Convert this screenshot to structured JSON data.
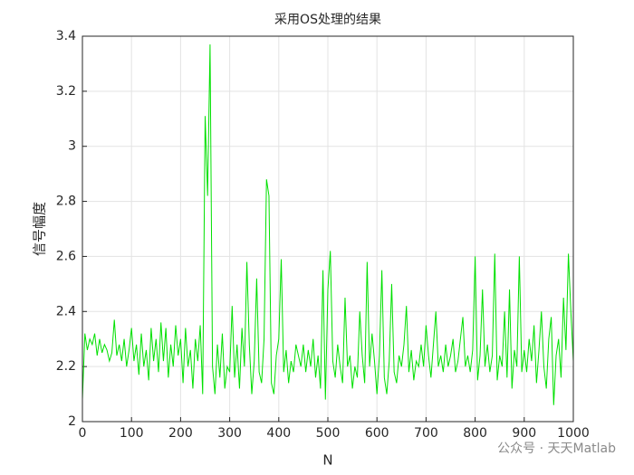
{
  "chart_data": {
    "type": "line",
    "title": "采用OS处理的结果",
    "xlabel": "N",
    "ylabel": "信号幅度",
    "watermark": "公众号 · 天天Matlab",
    "xlim": [
      0,
      1000
    ],
    "xticks": [
      0,
      100,
      200,
      300,
      400,
      500,
      600,
      700,
      800,
      900,
      1000
    ],
    "ylim": [
      2,
      3.4
    ],
    "yticks": [
      2,
      2.2,
      2.4,
      2.6,
      2.8,
      3,
      3.2,
      3.4
    ],
    "grid": true,
    "series": [
      {
        "color": "#00e000",
        "x": [
          0,
          5,
          10,
          15,
          20,
          25,
          30,
          35,
          40,
          45,
          50,
          55,
          60,
          65,
          70,
          75,
          80,
          85,
          90,
          95,
          100,
          105,
          110,
          115,
          120,
          125,
          130,
          135,
          140,
          145,
          150,
          155,
          160,
          165,
          170,
          175,
          180,
          185,
          190,
          195,
          200,
          205,
          210,
          215,
          220,
          225,
          230,
          235,
          240,
          245,
          250,
          255,
          260,
          265,
          270,
          275,
          280,
          285,
          290,
          295,
          300,
          305,
          310,
          315,
          320,
          325,
          330,
          335,
          340,
          345,
          350,
          355,
          360,
          365,
          370,
          375,
          380,
          385,
          390,
          395,
          400,
          405,
          410,
          415,
          420,
          425,
          430,
          435,
          440,
          445,
          450,
          455,
          460,
          465,
          470,
          475,
          480,
          485,
          490,
          495,
          500,
          505,
          510,
          515,
          520,
          525,
          530,
          535,
          540,
          545,
          550,
          555,
          560,
          565,
          570,
          575,
          580,
          585,
          590,
          595,
          600,
          605,
          610,
          615,
          620,
          625,
          630,
          635,
          640,
          645,
          650,
          655,
          660,
          665,
          670,
          675,
          680,
          685,
          690,
          695,
          700,
          705,
          710,
          715,
          720,
          725,
          730,
          735,
          740,
          745,
          750,
          755,
          760,
          765,
          770,
          775,
          780,
          785,
          790,
          795,
          800,
          805,
          810,
          815,
          820,
          825,
          830,
          835,
          840,
          845,
          850,
          855,
          860,
          865,
          870,
          875,
          880,
          885,
          890,
          895,
          900,
          905,
          910,
          915,
          920,
          925,
          930,
          935,
          940,
          945,
          950,
          955,
          960,
          965,
          970,
          975,
          980,
          985,
          990,
          995,
          1000
        ],
        "values": [
          2.08,
          2.32,
          2.26,
          2.3,
          2.28,
          2.32,
          2.24,
          2.3,
          2.25,
          2.28,
          2.26,
          2.22,
          2.25,
          2.37,
          2.24,
          2.28,
          2.22,
          2.3,
          2.2,
          2.26,
          2.34,
          2.22,
          2.28,
          2.17,
          2.32,
          2.2,
          2.26,
          2.15,
          2.34,
          2.22,
          2.3,
          2.18,
          2.36,
          2.22,
          2.34,
          2.16,
          2.28,
          2.2,
          2.35,
          2.24,
          2.3,
          2.14,
          2.34,
          2.2,
          2.26,
          2.12,
          2.3,
          2.22,
          2.35,
          2.1,
          3.11,
          2.82,
          3.37,
          2.2,
          2.1,
          2.28,
          2.16,
          2.32,
          2.12,
          2.2,
          2.18,
          2.42,
          2.16,
          2.28,
          2.12,
          2.34,
          2.2,
          2.58,
          2.28,
          2.1,
          2.22,
          2.52,
          2.18,
          2.14,
          2.3,
          2.88,
          2.82,
          2.14,
          2.1,
          2.24,
          2.3,
          2.59,
          2.18,
          2.26,
          2.14,
          2.22,
          2.18,
          2.28,
          2.24,
          2.2,
          2.28,
          2.18,
          2.26,
          2.2,
          2.3,
          2.16,
          2.24,
          2.12,
          2.55,
          2.08,
          2.48,
          2.62,
          2.22,
          2.16,
          2.28,
          2.2,
          2.14,
          2.45,
          2.2,
          2.24,
          2.12,
          2.2,
          2.16,
          2.4,
          2.24,
          2.14,
          2.58,
          2.2,
          2.32,
          2.22,
          2.1,
          2.24,
          2.55,
          2.16,
          2.1,
          2.22,
          2.5,
          2.18,
          2.14,
          2.24,
          2.2,
          2.28,
          2.42,
          2.18,
          2.26,
          2.15,
          2.22,
          2.2,
          2.28,
          2.2,
          2.35,
          2.24,
          2.16,
          2.28,
          2.4,
          2.2,
          2.24,
          2.18,
          2.28,
          2.2,
          2.24,
          2.3,
          2.18,
          2.22,
          2.3,
          2.38,
          2.2,
          2.24,
          2.18,
          2.26,
          2.6,
          2.15,
          2.24,
          2.48,
          2.2,
          2.28,
          2.18,
          2.24,
          2.61,
          2.15,
          2.24,
          2.2,
          2.4,
          2.16,
          2.48,
          2.12,
          2.26,
          2.2,
          2.6,
          2.18,
          2.26,
          2.18,
          2.3,
          2.22,
          2.35,
          2.14,
          2.26,
          2.4,
          2.2,
          2.12,
          2.3,
          2.38,
          2.06,
          2.24,
          2.3,
          2.16,
          2.45,
          2.26,
          2.61,
          2.4,
          2.22
        ]
      }
    ]
  }
}
